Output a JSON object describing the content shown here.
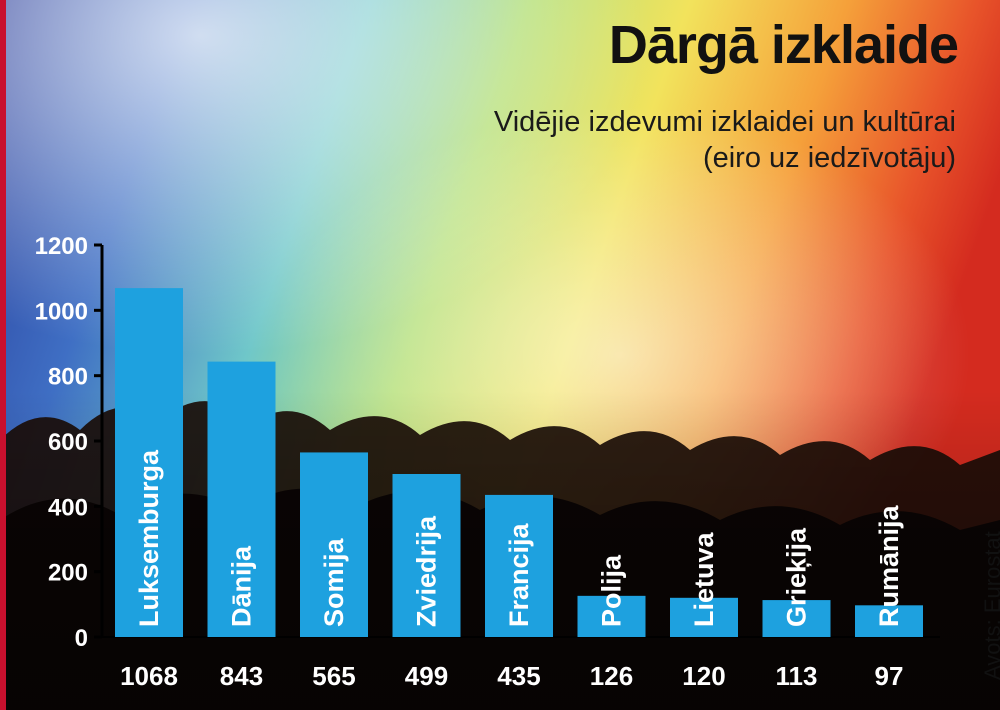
{
  "colors": {
    "bar": "#1ea1df",
    "axis": "#000000",
    "title": "#111111",
    "accent_red": "#c8102e"
  },
  "chart_data": {
    "type": "bar",
    "title": "Dārgā izklaide",
    "subtitle": [
      "Vidējie izdevumi izklaidei un kultūrai",
      "(eiro uz iedzīvotāju)"
    ],
    "categories": [
      "Luksemburga",
      "Dānija",
      "Somija",
      "Zviedrija",
      "Francija",
      "Polija",
      "Lietuva",
      "Grieķija",
      "Rumānija"
    ],
    "values": [
      1068,
      843,
      565,
      499,
      435,
      126,
      120,
      113,
      97
    ],
    "value_labels": [
      "1068",
      "843",
      "565",
      "499",
      "435",
      "126",
      "120",
      "113",
      "97"
    ],
    "ylim": [
      0,
      1200
    ],
    "yticks": [
      "0",
      "200",
      "400",
      "600",
      "800",
      "1000",
      "1200"
    ],
    "grid": false,
    "source": "Avots: Eurostat"
  }
}
